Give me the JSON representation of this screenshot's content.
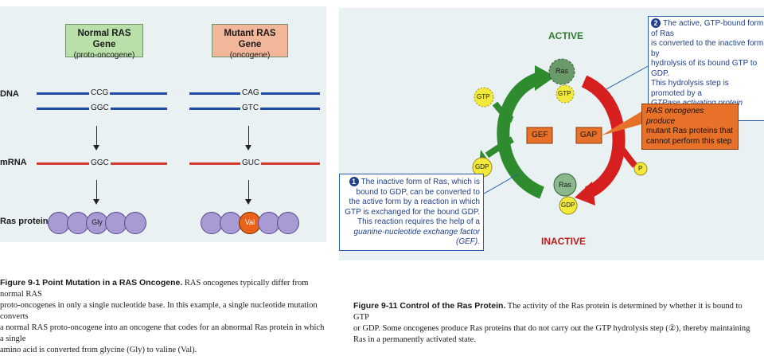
{
  "left": {
    "normal_title": "Normal RAS Gene",
    "normal_sub": "(proto-oncogene)",
    "mutant_title": "Mutant RAS Gene",
    "mutant_sub": "(oncogene)",
    "row_dna": "DNA",
    "row_mrna": "mRNA",
    "row_protein": "Ras protein",
    "normal_codon_top": "CCG",
    "normal_codon_bottom": "GGC",
    "normal_mrna": "GGC",
    "normal_aa": "Gly",
    "mutant_codon_top": "CAG",
    "mutant_codon_bottom": "GTC",
    "mutant_mrna": "GUC",
    "mutant_aa": "Val",
    "colors": {
      "normal_box": "#b8e0a8",
      "mutant_box": "#f2b79a",
      "strand": "#1f4aa8",
      "mutant_strand": "#d63a2a",
      "bead": "#a89bd4",
      "mutant_bead": "#e8621a"
    }
  },
  "left_caption": {
    "fig": "Figure 9-1   Point Mutation in a RAS Oncogene.",
    "line1": "RAS oncogenes typically differ from normal RAS",
    "line2": "proto-oncogenes in only a single nucleotide base. In this example, a single nucleotide mutation converts",
    "line3": "a normal RAS proto-oncogene into an oncogene that codes for an abnormal Ras protein in which a single",
    "line4": "amino acid is converted from glycine (Gly) to valine (Val)."
  },
  "right": {
    "active": "ACTIVE",
    "inactive": "INACTIVE",
    "gef": "GEF",
    "gap": "GAP",
    "ras": "Ras",
    "ras_inactive": "Ras",
    "gtp": "GTP",
    "gdp": "GDP",
    "p": "P",
    "callout1_num": "1",
    "callout1": [
      "The inactive form of Ras, which is",
      "bound to GDP, can be converted to",
      "the active form by a reaction in which",
      "GTP is exchanged for the bound GDP.",
      "This reaction requires the help of a",
      "guanine-nucleotide exchange factor (GEF)."
    ],
    "callout2_num": "2",
    "callout2": [
      "The active, GTP-bound form of Ras",
      "is converted to the inactive form by",
      "hydrolysis of its bound GTP to GDP.",
      "This hydrolysis step is promoted by a",
      "GTPase activating protein (GAP)."
    ],
    "onco_note": [
      "RAS oncogenes produce",
      "mutant Ras proteins that",
      "cannot perform this step"
    ],
    "colors": {
      "green_arrow": "#2e8b2e",
      "red_arrow": "#d62020",
      "box_fill": "#e8712a",
      "yellow": "#f2e93a"
    }
  },
  "right_caption": {
    "fig": "Figure 9-11   Control of the Ras Protein.",
    "line1": "The activity of the Ras protein is determined by whether it is bound to GTP",
    "line2": "or GDP. Some oncogenes produce Ras proteins that do not carry out the GTP hydrolysis step (②), thereby maintaining",
    "line3": "Ras in a permanently activated state."
  }
}
